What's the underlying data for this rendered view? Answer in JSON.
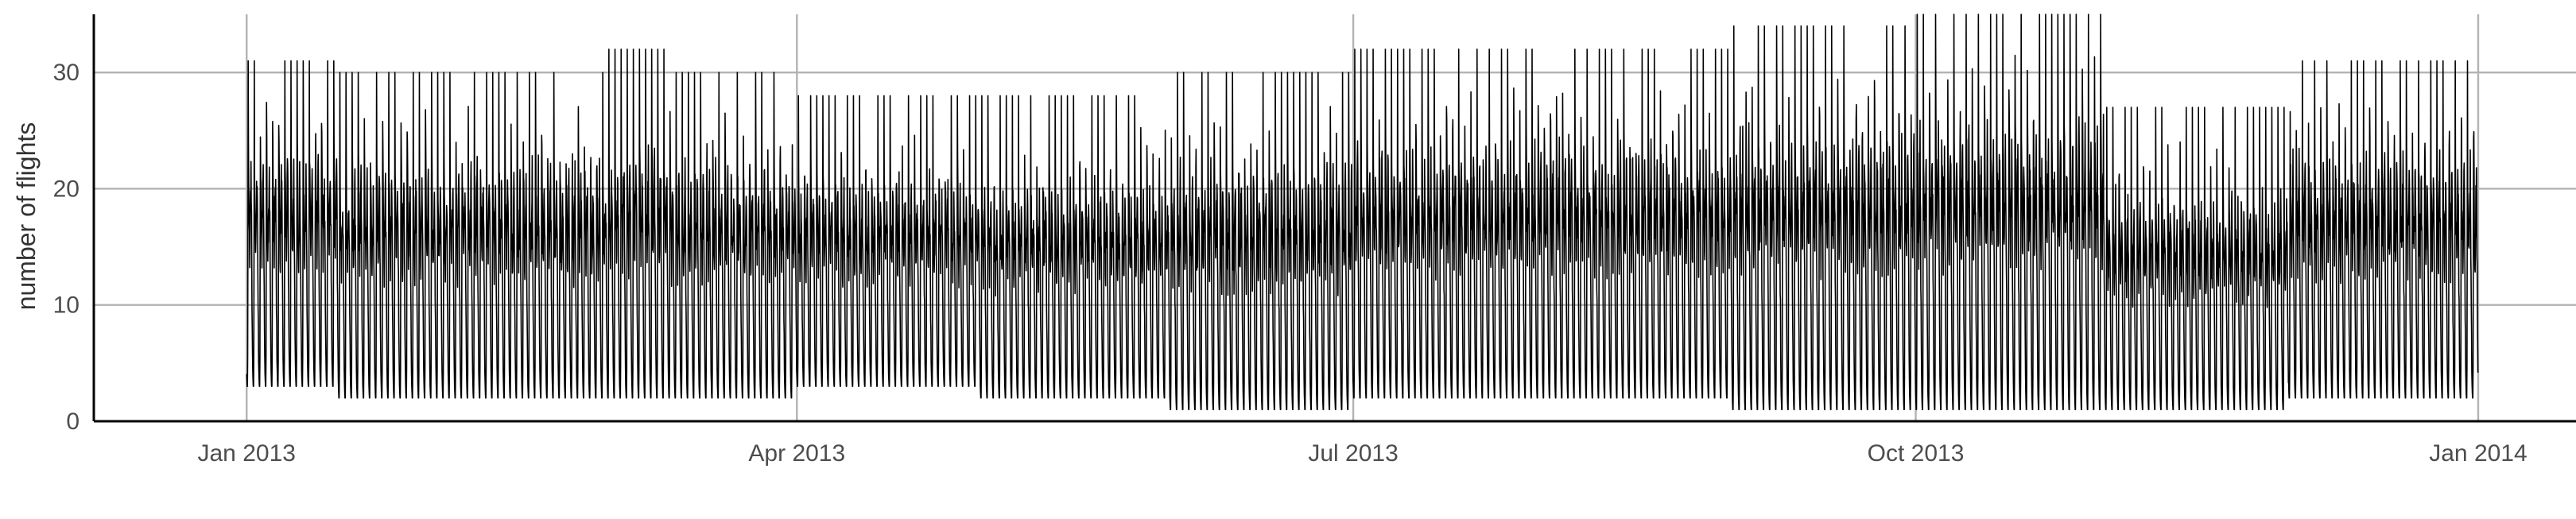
{
  "chart_data": {
    "type": "line",
    "title": "",
    "xlabel": "",
    "ylabel": "number of flights",
    "x_range": [
      "2013-01-01",
      "2013-12-31"
    ],
    "xlim": [
      "2012-12-07",
      "2014-01-17"
    ],
    "ylim": [
      0,
      35
    ],
    "yticks": [
      0,
      10,
      20,
      30
    ],
    "xticks": [
      {
        "date": "2013-01-01",
        "label": "Jan 2013"
      },
      {
        "date": "2013-04-01",
        "label": "Apr 2013"
      },
      {
        "date": "2013-07-01",
        "label": "Jul 2013"
      },
      {
        "date": "2013-10-01",
        "label": "Oct 2013"
      },
      {
        "date": "2014-01-01",
        "label": "Jan 2014"
      }
    ],
    "grid": true,
    "series_color": "#000000",
    "daily_ranges": [
      {
        "from": "2013-01-01",
        "to": "2013-01-15",
        "min": 3,
        "max": 31
      },
      {
        "from": "2013-01-16",
        "to": "2013-02-28",
        "min": 2,
        "max": 30
      },
      {
        "from": "2013-03-01",
        "to": "2013-03-10",
        "min": 2,
        "max": 32
      },
      {
        "from": "2013-03-11",
        "to": "2013-03-31",
        "min": 2,
        "max": 30
      },
      {
        "from": "2013-04-01",
        "to": "2013-04-30",
        "min": 3,
        "max": 28
      },
      {
        "from": "2013-05-01",
        "to": "2013-05-31",
        "min": 2,
        "max": 28
      },
      {
        "from": "2013-06-01",
        "to": "2013-06-30",
        "min": 1,
        "max": 30
      },
      {
        "from": "2013-07-01",
        "to": "2013-08-31",
        "min": 2,
        "max": 32
      },
      {
        "from": "2013-09-01",
        "to": "2013-09-30",
        "min": 1,
        "max": 34
      },
      {
        "from": "2013-10-01",
        "to": "2013-10-31",
        "min": 1,
        "max": 35
      },
      {
        "from": "2013-11-01",
        "to": "2013-11-30",
        "min": 1,
        "max": 27
      },
      {
        "from": "2013-12-01",
        "to": "2013-12-31",
        "min": 2,
        "max": 31
      }
    ],
    "note_values": "approximate range of the hourly flight counts per day; individual points are dense and drawn as hourly series"
  }
}
